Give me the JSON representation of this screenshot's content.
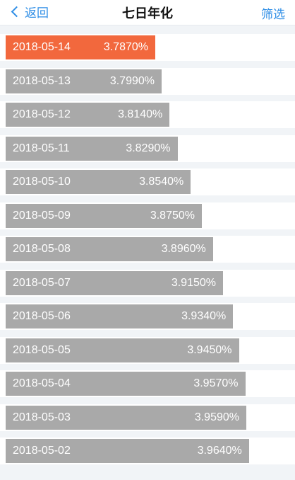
{
  "nav": {
    "back_label": "返回",
    "title": "七日年化",
    "filter_label": "筛选"
  },
  "colors": {
    "accent": "#2f8ee6",
    "bar_active": "#f2683d",
    "bar_default": "#a9a9a9"
  },
  "rows": [
    {
      "date": "2018-05-14",
      "rate_label": "3.7870%",
      "rate": 3.787,
      "active": true
    },
    {
      "date": "2018-05-13",
      "rate_label": "3.7990%",
      "rate": 3.799,
      "active": false
    },
    {
      "date": "2018-05-12",
      "rate_label": "3.8140%",
      "rate": 3.814,
      "active": false
    },
    {
      "date": "2018-05-11",
      "rate_label": "3.8290%",
      "rate": 3.829,
      "active": false
    },
    {
      "date": "2018-05-10",
      "rate_label": "3.8540%",
      "rate": 3.854,
      "active": false
    },
    {
      "date": "2018-05-09",
      "rate_label": "3.8750%",
      "rate": 3.875,
      "active": false
    },
    {
      "date": "2018-05-08",
      "rate_label": "3.8960%",
      "rate": 3.896,
      "active": false
    },
    {
      "date": "2018-05-07",
      "rate_label": "3.9150%",
      "rate": 3.915,
      "active": false
    },
    {
      "date": "2018-05-06",
      "rate_label": "3.9340%",
      "rate": 3.934,
      "active": false
    },
    {
      "date": "2018-05-05",
      "rate_label": "3.9450%",
      "rate": 3.945,
      "active": false
    },
    {
      "date": "2018-05-04",
      "rate_label": "3.9570%",
      "rate": 3.957,
      "active": false
    },
    {
      "date": "2018-05-03",
      "rate_label": "3.9590%",
      "rate": 3.959,
      "active": false
    },
    {
      "date": "2018-05-02",
      "rate_label": "3.9640%",
      "rate": 3.964,
      "active": false
    }
  ]
}
